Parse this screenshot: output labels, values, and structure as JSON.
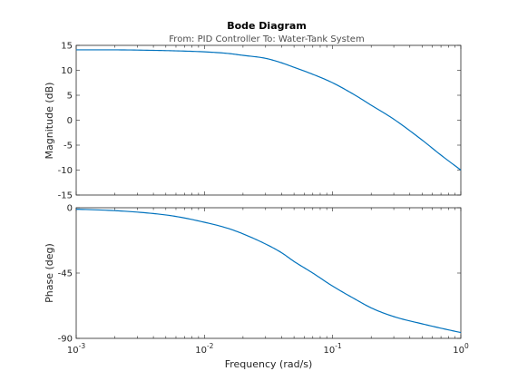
{
  "chart_data": [
    {
      "type": "line",
      "panel": "magnitude",
      "title": "Bode Diagram",
      "subtitle": "From: PID Controller  To: Water-Tank System",
      "xlabel": "",
      "ylabel": "Magnitude (dB)",
      "xscale": "log",
      "xlim": [
        0.001,
        1
      ],
      "ylim": [
        -15,
        15
      ],
      "yticks": [
        15,
        10,
        5,
        0,
        -5,
        -10,
        -15
      ],
      "ytick_labels": [
        "15",
        "10",
        "5",
        "0",
        "-5",
        "-10",
        "-15"
      ],
      "grid": false,
      "series": [
        {
          "color": "#0072bd",
          "x": [
            0.001,
            0.002,
            0.004,
            0.006,
            0.01,
            0.015,
            0.02,
            0.03,
            0.04,
            0.05,
            0.07,
            0.1,
            0.15,
            0.2,
            0.3,
            0.5,
            0.7,
            1.0
          ],
          "y": [
            14.1,
            14.1,
            14.0,
            13.9,
            13.7,
            13.4,
            13.0,
            12.4,
            11.5,
            10.6,
            9.2,
            7.5,
            5.0,
            3.0,
            0.2,
            -4.0,
            -7.0,
            -10.0
          ]
        }
      ]
    },
    {
      "type": "line",
      "panel": "phase",
      "xlabel": "Frequency  (rad/s)",
      "ylabel": "Phase (deg)",
      "xscale": "log",
      "xlim": [
        0.001,
        1
      ],
      "ylim": [
        -90,
        0
      ],
      "yticks": [
        0,
        -45,
        -90
      ],
      "ytick_labels": [
        "0",
        "-45",
        "-90"
      ],
      "xticks": [
        0.001,
        0.01,
        0.1,
        1
      ],
      "xtick_labels": [
        {
          "base": "10",
          "exp": "-3"
        },
        {
          "base": "10",
          "exp": "-2"
        },
        {
          "base": "10",
          "exp": "-1"
        },
        {
          "base": "10",
          "exp": "0"
        }
      ],
      "grid": false,
      "series": [
        {
          "color": "#0072bd",
          "x": [
            0.001,
            0.002,
            0.004,
            0.006,
            0.01,
            0.015,
            0.02,
            0.03,
            0.04,
            0.05,
            0.07,
            0.1,
            0.15,
            0.2,
            0.3,
            0.5,
            0.7,
            1.0
          ],
          "y": [
            -1,
            -2,
            -4,
            -6,
            -10,
            -14,
            -18,
            -25,
            -31,
            -37,
            -45,
            -54,
            -63,
            -69,
            -75,
            -80,
            -83,
            -86
          ]
        }
      ]
    }
  ]
}
